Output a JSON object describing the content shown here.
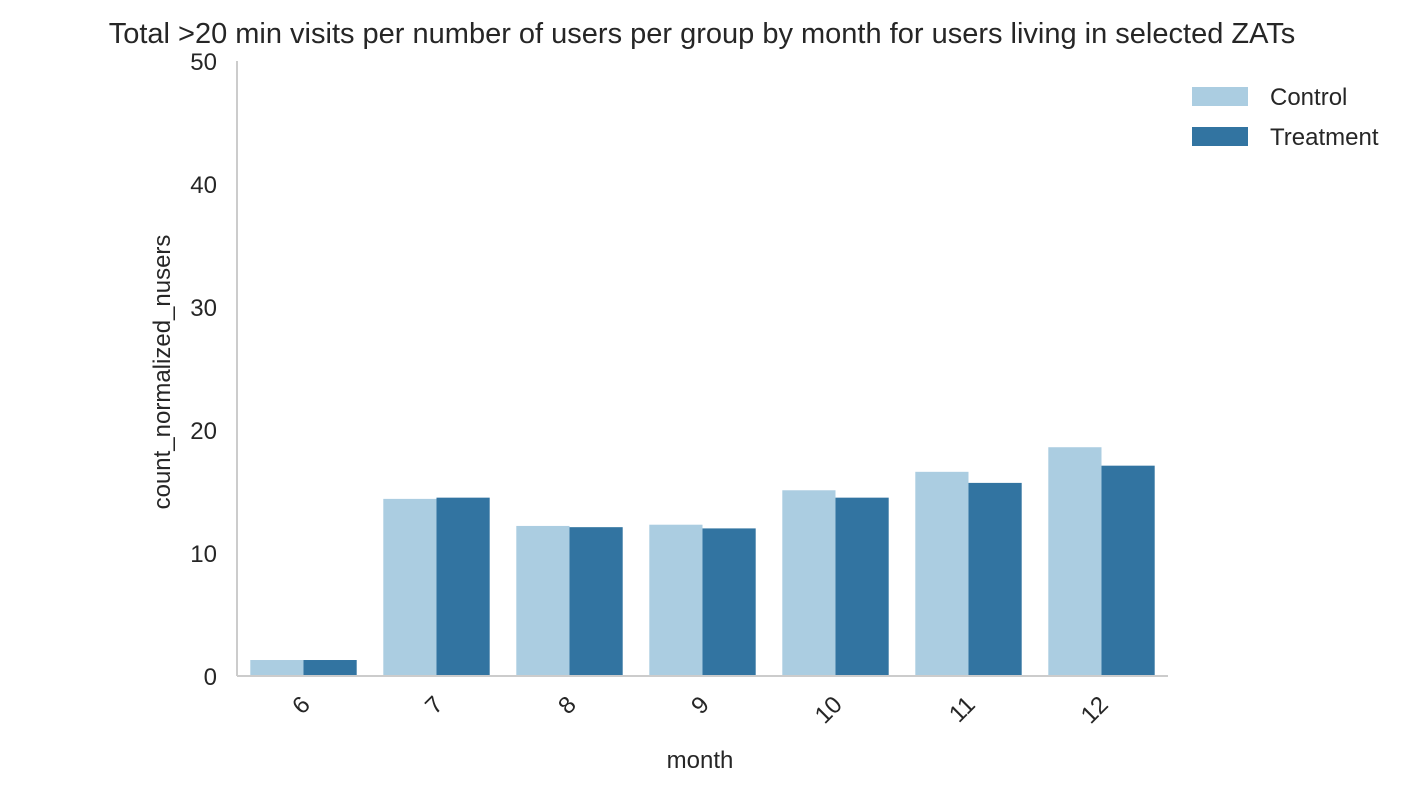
{
  "chart_data": {
    "type": "bar",
    "title": "Total >20 min visits per number of users per group by month for users living in selected ZATs",
    "xlabel": "month",
    "ylabel": "count_normalized_nusers",
    "categories": [
      "6",
      "7",
      "8",
      "9",
      "10",
      "11",
      "12"
    ],
    "ylim": [
      0,
      50
    ],
    "yticks": [
      0,
      10,
      20,
      30,
      40,
      50
    ],
    "series": [
      {
        "name": "Control",
        "color": "#abcde1",
        "values": [
          1.3,
          14.4,
          12.2,
          12.3,
          15.1,
          16.6,
          18.6
        ]
      },
      {
        "name": "Treatment",
        "color": "#3274a1",
        "values": [
          1.3,
          14.5,
          12.1,
          12.0,
          14.5,
          15.7,
          17.1
        ]
      }
    ],
    "grid": false,
    "legend_position": "top-right",
    "xtick_rotation": "45 degrees",
    "axis_color": "#cccccc"
  }
}
